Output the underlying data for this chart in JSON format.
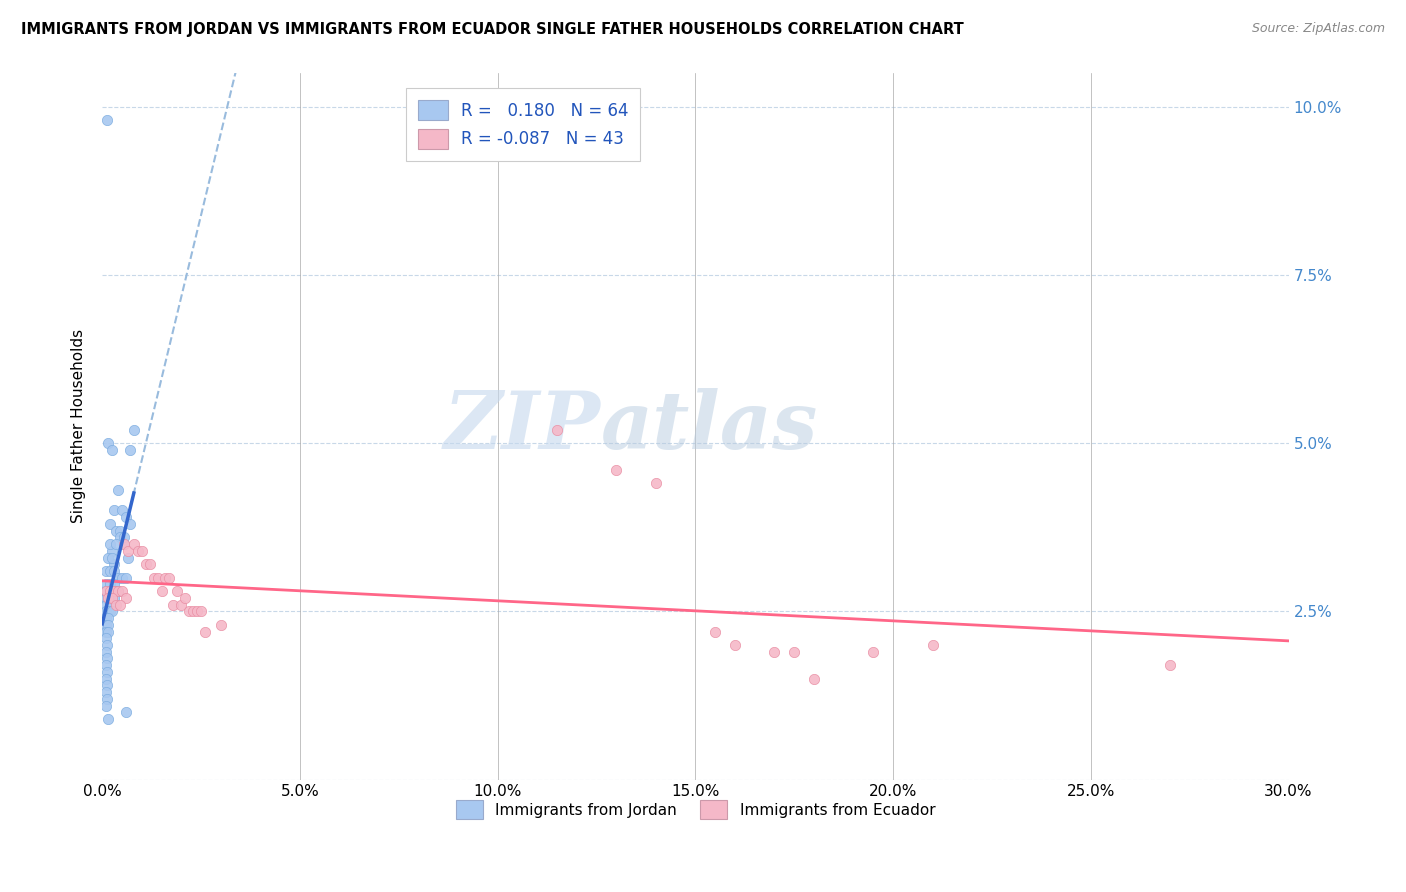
{
  "title": "IMMIGRANTS FROM JORDAN VS IMMIGRANTS FROM ECUADOR SINGLE FATHER HOUSEHOLDS CORRELATION CHART",
  "source": "Source: ZipAtlas.com",
  "ylabel": "Single Father Households",
  "yticks": [
    0.0,
    0.025,
    0.05,
    0.075,
    0.1
  ],
  "ytick_labels": [
    "",
    "2.5%",
    "5.0%",
    "7.5%",
    "10.0%"
  ],
  "xticks": [
    0.0,
    0.05,
    0.1,
    0.15,
    0.2,
    0.25,
    0.3
  ],
  "xtick_labels": [
    "0.0%",
    "5.0%",
    "10.0%",
    "15.0%",
    "20.0%",
    "25.0%",
    "30.0%"
  ],
  "legend1_R": "0.180",
  "legend1_N": "64",
  "legend2_R": "-0.087",
  "legend2_N": "43",
  "watermark_zip": "ZIP",
  "watermark_atlas": "atlas",
  "jordan_color": "#a8c8f0",
  "jordan_edge_color": "#7aabdf",
  "ecuador_color": "#f5b8c8",
  "ecuador_edge_color": "#e88aa0",
  "jordan_line_color": "#3366cc",
  "ecuador_line_color": "#ff6688",
  "dash_line_color": "#99bbdd",
  "jordan_scatter": [
    [
      0.0012,
      0.098
    ],
    [
      0.008,
      0.052
    ],
    [
      0.007,
      0.049
    ],
    [
      0.002,
      0.038
    ],
    [
      0.0035,
      0.037
    ],
    [
      0.0045,
      0.037
    ],
    [
      0.0055,
      0.035
    ],
    [
      0.0025,
      0.034
    ],
    [
      0.0065,
      0.033
    ],
    [
      0.003,
      0.032
    ],
    [
      0.0015,
      0.05
    ],
    [
      0.0025,
      0.049
    ],
    [
      0.004,
      0.043
    ],
    [
      0.003,
      0.04
    ],
    [
      0.005,
      0.04
    ],
    [
      0.006,
      0.039
    ],
    [
      0.007,
      0.038
    ],
    [
      0.0045,
      0.036
    ],
    [
      0.0055,
      0.036
    ],
    [
      0.002,
      0.035
    ],
    [
      0.0035,
      0.035
    ],
    [
      0.0015,
      0.033
    ],
    [
      0.0025,
      0.033
    ],
    [
      0.001,
      0.031
    ],
    [
      0.002,
      0.031
    ],
    [
      0.003,
      0.031
    ],
    [
      0.004,
      0.03
    ],
    [
      0.005,
      0.03
    ],
    [
      0.006,
      0.03
    ],
    [
      0.001,
      0.029
    ],
    [
      0.002,
      0.029
    ],
    [
      0.003,
      0.029
    ],
    [
      0.001,
      0.028
    ],
    [
      0.002,
      0.028
    ],
    [
      0.003,
      0.028
    ],
    [
      0.004,
      0.028
    ],
    [
      0.001,
      0.027
    ],
    [
      0.002,
      0.027
    ],
    [
      0.003,
      0.027
    ],
    [
      0.001,
      0.026
    ],
    [
      0.002,
      0.026
    ],
    [
      0.001,
      0.025
    ],
    [
      0.0015,
      0.025
    ],
    [
      0.002,
      0.025
    ],
    [
      0.0025,
      0.025
    ],
    [
      0.001,
      0.024
    ],
    [
      0.0015,
      0.024
    ],
    [
      0.001,
      0.023
    ],
    [
      0.0015,
      0.023
    ],
    [
      0.001,
      0.022
    ],
    [
      0.0015,
      0.022
    ],
    [
      0.001,
      0.021
    ],
    [
      0.0012,
      0.02
    ],
    [
      0.001,
      0.019
    ],
    [
      0.0012,
      0.018
    ],
    [
      0.001,
      0.017
    ],
    [
      0.0012,
      0.016
    ],
    [
      0.001,
      0.015
    ],
    [
      0.0012,
      0.014
    ],
    [
      0.001,
      0.013
    ],
    [
      0.0012,
      0.012
    ],
    [
      0.001,
      0.011
    ],
    [
      0.006,
      0.01
    ],
    [
      0.0015,
      0.009
    ]
  ],
  "ecuador_scatter": [
    [
      0.001,
      0.028
    ],
    [
      0.002,
      0.028
    ],
    [
      0.003,
      0.028
    ],
    [
      0.004,
      0.028
    ],
    [
      0.005,
      0.028
    ],
    [
      0.006,
      0.027
    ],
    [
      0.0015,
      0.027
    ],
    [
      0.0025,
      0.027
    ],
    [
      0.0035,
      0.026
    ],
    [
      0.0045,
      0.026
    ],
    [
      0.0055,
      0.035
    ],
    [
      0.0065,
      0.034
    ],
    [
      0.008,
      0.035
    ],
    [
      0.009,
      0.034
    ],
    [
      0.01,
      0.034
    ],
    [
      0.011,
      0.032
    ],
    [
      0.012,
      0.032
    ],
    [
      0.013,
      0.03
    ],
    [
      0.014,
      0.03
    ],
    [
      0.015,
      0.028
    ],
    [
      0.016,
      0.03
    ],
    [
      0.017,
      0.03
    ],
    [
      0.018,
      0.026
    ],
    [
      0.019,
      0.028
    ],
    [
      0.02,
      0.026
    ],
    [
      0.021,
      0.027
    ],
    [
      0.022,
      0.025
    ],
    [
      0.023,
      0.025
    ],
    [
      0.024,
      0.025
    ],
    [
      0.025,
      0.025
    ],
    [
      0.026,
      0.022
    ],
    [
      0.03,
      0.023
    ],
    [
      0.115,
      0.052
    ],
    [
      0.13,
      0.046
    ],
    [
      0.14,
      0.044
    ],
    [
      0.155,
      0.022
    ],
    [
      0.16,
      0.02
    ],
    [
      0.17,
      0.019
    ],
    [
      0.175,
      0.019
    ],
    [
      0.195,
      0.019
    ],
    [
      0.21,
      0.02
    ],
    [
      0.27,
      0.017
    ],
    [
      0.18,
      0.015
    ]
  ],
  "jordan_line_x": [
    0.0,
    0.012
  ],
  "jordan_line_y_start": 0.025,
  "jordan_line_slope": 1.8,
  "ecuador_line_x": [
    0.0,
    0.3
  ],
  "ecuador_line_y_start": 0.027,
  "ecuador_line_y_end": 0.023
}
